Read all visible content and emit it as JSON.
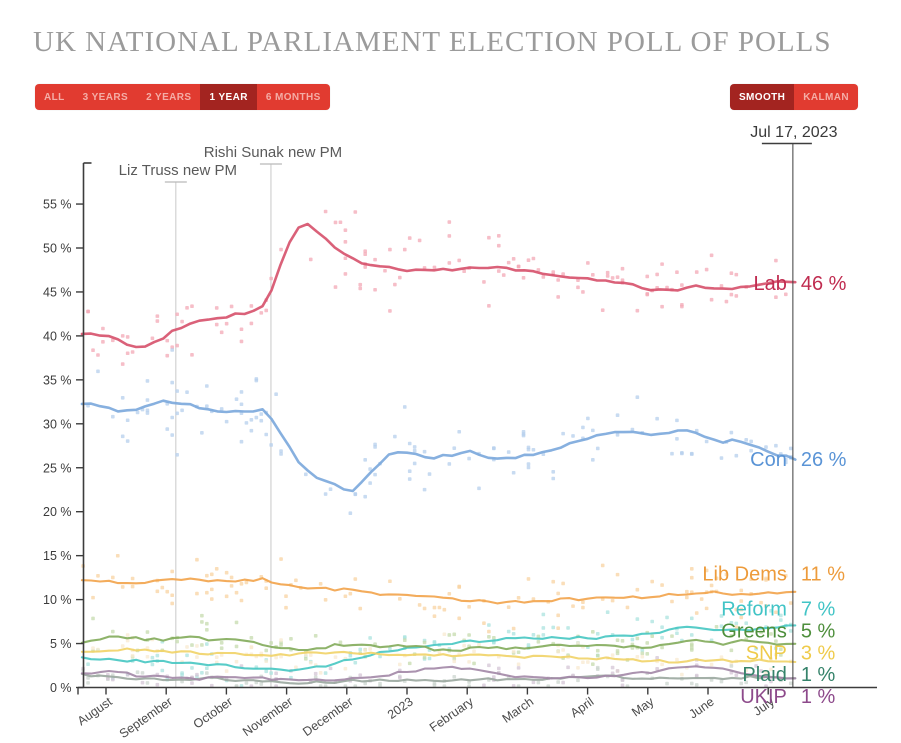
{
  "header": {
    "title": "UK NATIONAL PARLIAMENT ELECTION POLL OF POLLS"
  },
  "toolbar": {
    "range_buttons": [
      {
        "label": "ALL",
        "selected": false
      },
      {
        "label": "3 YEARS",
        "selected": false
      },
      {
        "label": "2 YEARS",
        "selected": false
      },
      {
        "label": "1 YEAR",
        "selected": true
      },
      {
        "label": "6 MONTHS",
        "selected": false
      }
    ],
    "mode_buttons": [
      {
        "label": "SMOOTH",
        "selected": true
      },
      {
        "label": "KALMAN",
        "selected": false
      }
    ]
  },
  "cursor": {
    "date_label": "Jul 17, 2023"
  },
  "chart_data": {
    "type": "scatter",
    "title": "UK national parliament election poll of polls, 1 year, smoothed",
    "x_tick_labels": [
      "August",
      "September",
      "October",
      "November",
      "December",
      "2023",
      "February",
      "March",
      "April",
      "May",
      "June",
      "July"
    ],
    "y_ticks": [
      0,
      5,
      10,
      15,
      20,
      25,
      30,
      35,
      40,
      45,
      50,
      55
    ],
    "y_tick_suffix": " %",
    "ylim": [
      0,
      58
    ],
    "grid": false,
    "legend_position": "right-edge-labels",
    "annotations": [
      {
        "label": "Liz Truss new PM",
        "t": 1.16
      },
      {
        "label": "Rishi Sunak new PM",
        "t": 2.74
      }
    ],
    "cursor_t": 11.41,
    "series": [
      {
        "name": "Lab",
        "end_value": 46,
        "end_label": "Lab",
        "end_value_label": "46 %",
        "color": "#d6506a",
        "scatter_color": "#f3a8b6",
        "label_color": "#c02c50",
        "spread": 2.0,
        "n_points": 135,
        "points": [
          [
            -0.4,
            40.3
          ],
          [
            0,
            40.0
          ],
          [
            0.3,
            39.2
          ],
          [
            0.6,
            38.7
          ],
          [
            0.9,
            39.6
          ],
          [
            1.2,
            40.9
          ],
          [
            1.5,
            41.6
          ],
          [
            1.8,
            41.9
          ],
          [
            2.1,
            42.4
          ],
          [
            2.4,
            42.7
          ],
          [
            2.6,
            43.3
          ],
          [
            2.8,
            46.0
          ],
          [
            3.0,
            50.0
          ],
          [
            3.2,
            52.2
          ],
          [
            3.35,
            52.7
          ],
          [
            3.6,
            51.3
          ],
          [
            3.9,
            49.4
          ],
          [
            4.2,
            48.4
          ],
          [
            4.6,
            47.9
          ],
          [
            5.0,
            47.5
          ],
          [
            5.4,
            47.4
          ],
          [
            5.8,
            47.6
          ],
          [
            6.2,
            47.7
          ],
          [
            6.6,
            47.8
          ],
          [
            7.0,
            47.4
          ],
          [
            7.4,
            46.9
          ],
          [
            7.8,
            46.6
          ],
          [
            8.2,
            46.4
          ],
          [
            8.6,
            46.0
          ],
          [
            9.0,
            45.3
          ],
          [
            9.4,
            45.2
          ],
          [
            9.8,
            45.6
          ],
          [
            10.2,
            45.3
          ],
          [
            10.6,
            45.6
          ],
          [
            11.0,
            46.1
          ],
          [
            11.45,
            46.0
          ]
        ]
      },
      {
        "name": "Con",
        "end_value": 26,
        "end_label": "Con",
        "end_value_label": "26 %",
        "color": "#7aa7db",
        "scatter_color": "#b5cfec",
        "label_color": "#5a94d6",
        "spread": 2.0,
        "n_points": 135,
        "points": [
          [
            -0.4,
            32.4
          ],
          [
            0,
            31.8
          ],
          [
            0.3,
            31.4
          ],
          [
            0.6,
            31.9
          ],
          [
            0.9,
            32.5
          ],
          [
            1.2,
            32.5
          ],
          [
            1.5,
            31.9
          ],
          [
            1.8,
            31.5
          ],
          [
            2.1,
            31.4
          ],
          [
            2.4,
            31.3
          ],
          [
            2.6,
            31.6
          ],
          [
            2.8,
            30.3
          ],
          [
            3.0,
            27.8
          ],
          [
            3.2,
            25.5
          ],
          [
            3.5,
            23.8
          ],
          [
            3.8,
            23.0
          ],
          [
            4.05,
            22.2
          ],
          [
            4.3,
            23.6
          ],
          [
            4.55,
            25.6
          ],
          [
            4.8,
            26.9
          ],
          [
            5.1,
            26.6
          ],
          [
            5.4,
            26.1
          ],
          [
            5.7,
            26.4
          ],
          [
            6.0,
            27.0
          ],
          [
            6.3,
            26.3
          ],
          [
            6.6,
            25.9
          ],
          [
            6.9,
            26.4
          ],
          [
            7.2,
            26.6
          ],
          [
            7.5,
            27.1
          ],
          [
            7.8,
            27.9
          ],
          [
            8.1,
            28.5
          ],
          [
            8.4,
            29.0
          ],
          [
            8.7,
            29.3
          ],
          [
            9.0,
            28.8
          ],
          [
            9.3,
            29.0
          ],
          [
            9.6,
            29.4
          ],
          [
            9.9,
            28.6
          ],
          [
            10.2,
            27.9
          ],
          [
            10.5,
            28.2
          ],
          [
            10.8,
            27.5
          ],
          [
            11.1,
            26.6
          ],
          [
            11.45,
            26.0
          ]
        ]
      },
      {
        "name": "Lib Dems",
        "end_value": 11,
        "end_label": "Lib Dems",
        "end_value_label": "11 %",
        "color": "#f2a34a",
        "scatter_color": "#f8d3a2",
        "label_color": "#ed9b3b",
        "spread": 1.4,
        "n_points": 115,
        "points": [
          [
            -0.4,
            12.3
          ],
          [
            0.2,
            11.9
          ],
          [
            0.8,
            12.1
          ],
          [
            1.4,
            12.3
          ],
          [
            2.0,
            12.1
          ],
          [
            2.6,
            12.3
          ],
          [
            3.0,
            11.6
          ],
          [
            3.5,
            11.3
          ],
          [
            4.0,
            11.1
          ],
          [
            4.5,
            10.7
          ],
          [
            5.0,
            10.5
          ],
          [
            5.5,
            10.2
          ],
          [
            6.0,
            9.9
          ],
          [
            6.5,
            9.7
          ],
          [
            7.0,
            9.8
          ],
          [
            7.5,
            10.0
          ],
          [
            8.0,
            10.1
          ],
          [
            8.5,
            10.2
          ],
          [
            9.0,
            10.3
          ],
          [
            9.5,
            10.6
          ],
          [
            10.0,
            10.9
          ],
          [
            10.4,
            10.6
          ],
          [
            10.8,
            10.5
          ],
          [
            11.1,
            10.8
          ],
          [
            11.45,
            11.0
          ]
        ]
      },
      {
        "name": "Reform",
        "end_value": 7,
        "end_label": "Reform",
        "end_value_label": "7 %",
        "color": "#46c6c2",
        "scatter_color": "#abe3df",
        "label_color": "#41c4c6",
        "spread": 1.1,
        "n_points": 95,
        "points": [
          [
            -0.4,
            3.3
          ],
          [
            0.3,
            3.1
          ],
          [
            0.9,
            2.9
          ],
          [
            1.5,
            2.7
          ],
          [
            2.1,
            2.4
          ],
          [
            2.7,
            2.1
          ],
          [
            3.2,
            1.9
          ],
          [
            3.6,
            2.4
          ],
          [
            4.0,
            3.2
          ],
          [
            4.5,
            3.9
          ],
          [
            5.0,
            4.4
          ],
          [
            5.5,
            4.9
          ],
          [
            6.0,
            5.2
          ],
          [
            6.5,
            5.5
          ],
          [
            7.0,
            5.6
          ],
          [
            7.5,
            5.7
          ],
          [
            8.0,
            5.6
          ],
          [
            8.5,
            5.8
          ],
          [
            9.0,
            6.1
          ],
          [
            9.4,
            6.6
          ],
          [
            9.8,
            6.9
          ],
          [
            10.2,
            6.6
          ],
          [
            10.6,
            6.5
          ],
          [
            11.0,
            6.7
          ],
          [
            11.45,
            7.0
          ]
        ]
      },
      {
        "name": "Greens",
        "end_value": 5,
        "end_label": "Greens",
        "end_value_label": "5 %",
        "color": "#82ab5a",
        "scatter_color": "#c6dbae",
        "label_color": "#4e8f3c",
        "spread": 1.1,
        "n_points": 95,
        "points": [
          [
            -0.4,
            5.2
          ],
          [
            0.2,
            5.8
          ],
          [
            0.6,
            5.5
          ],
          [
            1.0,
            5.4
          ],
          [
            1.4,
            5.7
          ],
          [
            1.8,
            5.4
          ],
          [
            2.2,
            5.6
          ],
          [
            2.6,
            4.9
          ],
          [
            3.0,
            4.5
          ],
          [
            3.4,
            4.3
          ],
          [
            3.8,
            4.8
          ],
          [
            4.2,
            4.9
          ],
          [
            4.6,
            4.6
          ],
          [
            5.0,
            4.8
          ],
          [
            5.4,
            4.4
          ],
          [
            5.8,
            4.1
          ],
          [
            6.2,
            4.6
          ],
          [
            6.6,
            4.4
          ],
          [
            7.0,
            4.6
          ],
          [
            7.4,
            4.8
          ],
          [
            7.8,
            4.6
          ],
          [
            8.2,
            5.0
          ],
          [
            8.6,
            4.7
          ],
          [
            9.0,
            4.5
          ],
          [
            9.4,
            4.9
          ],
          [
            9.8,
            5.4
          ],
          [
            10.2,
            4.9
          ],
          [
            10.6,
            5.3
          ],
          [
            11.0,
            5.0
          ],
          [
            11.45,
            5.0
          ]
        ]
      },
      {
        "name": "SNP",
        "end_value": 3,
        "end_label": "SNP",
        "end_value_label": "3 %",
        "color": "#f1d367",
        "scatter_color": "#f8ead0",
        "label_color": "#efcb4b",
        "spread": 1.0,
        "n_points": 85,
        "points": [
          [
            -0.4,
            4.1
          ],
          [
            0.4,
            4.3
          ],
          [
            1.0,
            4.1
          ],
          [
            1.6,
            3.9
          ],
          [
            2.2,
            3.8
          ],
          [
            2.8,
            3.7
          ],
          [
            3.4,
            3.9
          ],
          [
            4.0,
            3.9
          ],
          [
            4.6,
            3.8
          ],
          [
            5.2,
            3.6
          ],
          [
            5.8,
            3.7
          ],
          [
            6.4,
            3.8
          ],
          [
            7.0,
            3.5
          ],
          [
            7.6,
            3.4
          ],
          [
            8.2,
            3.3
          ],
          [
            8.8,
            3.1
          ],
          [
            9.4,
            2.9
          ],
          [
            10.0,
            3.2
          ],
          [
            10.6,
            3.0
          ],
          [
            11.0,
            3.1
          ],
          [
            11.45,
            3.0
          ]
        ]
      },
      {
        "name": "Plaid",
        "end_value": 1,
        "end_label": "Plaid",
        "end_value_label": "1 %",
        "color": "#9aa79f",
        "scatter_color": "#ccd6cf",
        "label_color": "#35836a",
        "spread": 0.6,
        "n_points": 65,
        "points": [
          [
            -0.4,
            1.4
          ],
          [
            0.3,
            1.0
          ],
          [
            1.0,
            0.9
          ],
          [
            1.7,
            1.0
          ],
          [
            2.4,
            0.8
          ],
          [
            3.0,
            0.5
          ],
          [
            3.6,
            0.6
          ],
          [
            4.2,
            0.8
          ],
          [
            4.9,
            0.9
          ],
          [
            5.6,
            0.8
          ],
          [
            6.3,
            0.9
          ],
          [
            7.0,
            0.9
          ],
          [
            7.7,
            1.1
          ],
          [
            8.4,
            1.3
          ],
          [
            9.0,
            1.0
          ],
          [
            9.6,
            1.1
          ],
          [
            10.2,
            1.0
          ],
          [
            10.8,
            1.2
          ],
          [
            11.45,
            1.0
          ]
        ]
      },
      {
        "name": "UKIP",
        "end_value": 1,
        "end_label": "UKIP",
        "end_value_label": "1 %",
        "color": "#a287a6",
        "scatter_color": "#d4c6d6",
        "label_color": "#8d4a8b",
        "spread": 0.7,
        "n_points": 65,
        "points": [
          [
            -0.4,
            1.5
          ],
          [
            0.1,
            1.8
          ],
          [
            0.5,
            1.4
          ],
          [
            1.0,
            1.1
          ],
          [
            1.6,
            1.0
          ],
          [
            2.2,
            1.2
          ],
          [
            2.8,
            1.0
          ],
          [
            3.4,
            0.8
          ],
          [
            4.0,
            1.0
          ],
          [
            4.6,
            1.4
          ],
          [
            5.2,
            2.0
          ],
          [
            5.6,
            2.4
          ],
          [
            6.0,
            2.2
          ],
          [
            6.4,
            1.7
          ],
          [
            6.8,
            1.3
          ],
          [
            7.2,
            1.1
          ],
          [
            7.8,
            1.1
          ],
          [
            8.4,
            1.3
          ],
          [
            9.0,
            1.7
          ],
          [
            9.4,
            2.3
          ],
          [
            9.7,
            2.5
          ],
          [
            10.1,
            2.2
          ],
          [
            10.5,
            1.7
          ],
          [
            10.9,
            1.2
          ],
          [
            11.2,
            1.0
          ],
          [
            11.45,
            1.0
          ]
        ]
      }
    ]
  }
}
